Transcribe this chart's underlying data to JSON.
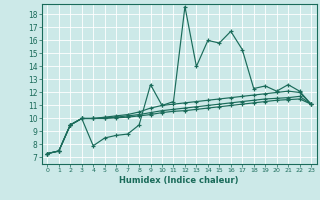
{
  "title": "",
  "xlabel": "Humidex (Indice chaleur)",
  "ylabel": "",
  "bg_color": "#cce9e8",
  "grid_color": "#ffffff",
  "line_color": "#1a6b5a",
  "xlim": [
    -0.5,
    23.5
  ],
  "ylim": [
    6.5,
    18.8
  ],
  "xticks": [
    0,
    1,
    2,
    3,
    4,
    5,
    6,
    7,
    8,
    9,
    10,
    11,
    12,
    13,
    14,
    15,
    16,
    17,
    18,
    19,
    20,
    21,
    22,
    23
  ],
  "yticks": [
    7,
    8,
    9,
    10,
    11,
    12,
    13,
    14,
    15,
    16,
    17,
    18
  ],
  "series": [
    [
      7.3,
      7.5,
      9.5,
      10.0,
      7.9,
      8.5,
      8.7,
      8.8,
      9.5,
      12.6,
      11.0,
      11.3,
      18.6,
      14.0,
      16.0,
      15.8,
      16.7,
      15.3,
      12.3,
      12.5,
      12.1,
      12.6,
      12.1,
      11.1
    ],
    [
      7.3,
      7.5,
      9.5,
      10.0,
      10.0,
      10.1,
      10.2,
      10.3,
      10.5,
      10.8,
      11.0,
      11.1,
      11.2,
      11.3,
      11.4,
      11.5,
      11.6,
      11.7,
      11.8,
      11.9,
      12.0,
      12.1,
      12.0,
      11.1
    ],
    [
      7.3,
      7.5,
      9.5,
      10.0,
      10.0,
      10.05,
      10.1,
      10.2,
      10.3,
      10.45,
      10.6,
      10.7,
      10.8,
      10.9,
      11.0,
      11.1,
      11.2,
      11.3,
      11.4,
      11.5,
      11.55,
      11.6,
      11.7,
      11.1
    ],
    [
      7.3,
      7.5,
      9.5,
      10.0,
      10.0,
      10.0,
      10.05,
      10.1,
      10.2,
      10.3,
      10.45,
      10.55,
      10.6,
      10.7,
      10.8,
      10.9,
      11.0,
      11.1,
      11.2,
      11.3,
      11.4,
      11.45,
      11.5,
      11.1
    ]
  ]
}
